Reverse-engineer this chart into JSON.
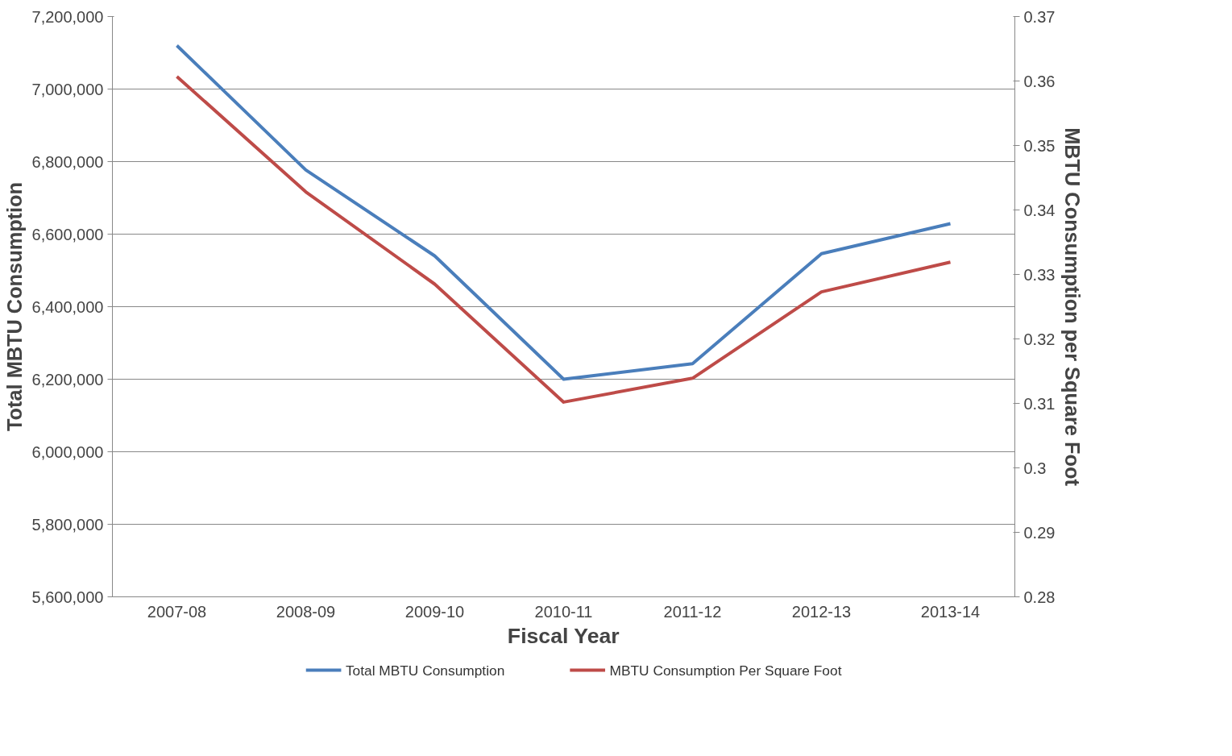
{
  "chart_data": {
    "type": "line",
    "categories": [
      "2007-08",
      "2008-09",
      "2009-10",
      "2010-11",
      "2011-12",
      "2012-13",
      "2013-14"
    ],
    "xlabel": "Fiscal Year",
    "ylabel": "Total MBTU Consumption",
    "y2label": "MBTU Consumption per Square Foot",
    "series": [
      {
        "name": "Total MBTU Consumption",
        "color": "#4a7ebb",
        "values": [
          7120000,
          6777000,
          6540000,
          6200000,
          6243000,
          6546000,
          6629000
        ]
      },
      {
        "name": "MBTU Consumption Per Square Foot",
        "color": "#be4b48",
        "axis": "y2",
        "values": [
          0.3607,
          0.3428,
          0.3285,
          0.3102,
          0.3139,
          0.3273,
          0.3319
        ]
      }
    ],
    "ylim": [
      5600000,
      7200000
    ],
    "yticks": [
      {
        "value": 5600000,
        "label": "5,600,000"
      },
      {
        "value": 5800000,
        "label": "5,800,000"
      },
      {
        "value": 6000000,
        "label": "6,000,000"
      },
      {
        "value": 6200000,
        "label": "6,200,000"
      },
      {
        "value": 6400000,
        "label": "6,400,000"
      },
      {
        "value": 6600000,
        "label": "6,600,000"
      },
      {
        "value": 6800000,
        "label": "6,800,000"
      },
      {
        "value": 7000000,
        "label": "7,000,000"
      },
      {
        "value": 7200000,
        "label": "7,200,000"
      }
    ],
    "y2lim": [
      0.28,
      0.37
    ],
    "y2ticks": [
      0.28,
      0.29,
      0.3,
      0.31,
      0.32,
      0.33,
      0.34,
      0.35,
      0.36,
      0.37
    ],
    "grid": "y",
    "legend": "bottom",
    "marker": "none",
    "line_style": "solid"
  }
}
